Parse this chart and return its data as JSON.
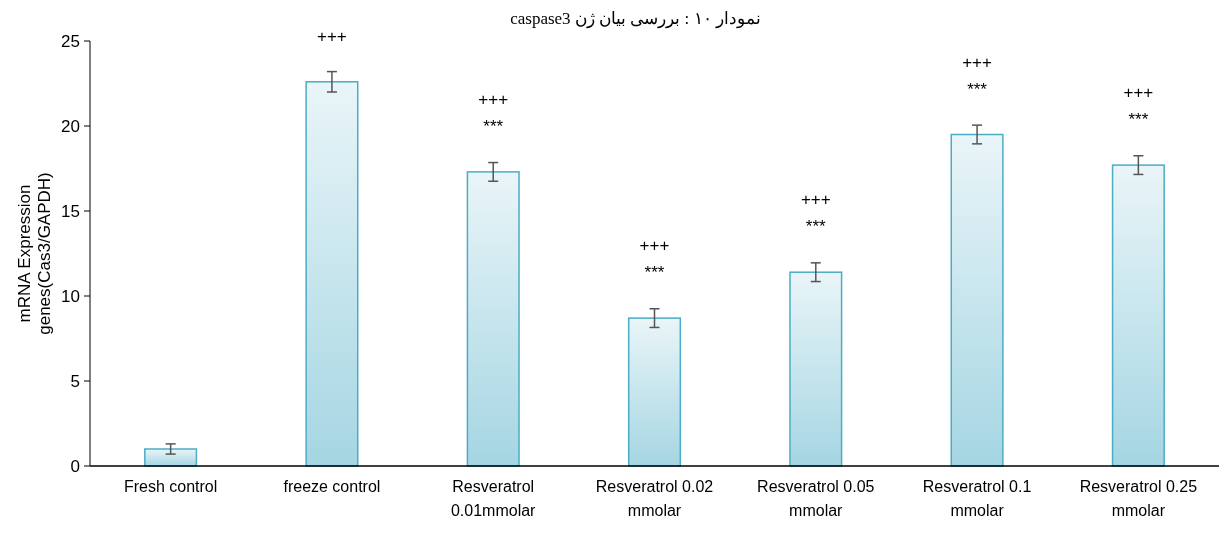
{
  "chart_data": {
    "type": "bar",
    "title": "نمودار ۱۰ : بررسی بیان ژن caspase3",
    "ylabel": "mRNA Expression\ngenes(Cas3/GAPDH)",
    "categories": [
      "Fresh control",
      "freeze control",
      "Resveratrol\n0.01mmolar",
      "Resveratrol 0.02\nmmolar",
      "Resveratrol 0.05\nmmolar",
      "Resveratrol 0.1\nmmolar",
      "Resveratrol 0.25\nmmolar"
    ],
    "values": [
      1.0,
      22.6,
      17.3,
      8.7,
      11.4,
      19.5,
      17.7
    ],
    "errors": [
      0.3,
      0.6,
      0.55,
      0.55,
      0.55,
      0.55,
      0.55
    ],
    "color": "#4bacc6",
    "ylim": [
      0,
      25
    ],
    "yticks": [
      0,
      5,
      10,
      15,
      20,
      25
    ],
    "grid": false,
    "annotations": [
      {
        "text": "+++",
        "x": "freeze control",
        "y": 22.6
      },
      {
        "text": "+++\n***",
        "x": "Resveratrol\n0.01mmolar",
        "y": 17.3
      },
      {
        "text": "+++\n***",
        "x": "Resveratrol 0.02\nmmolar",
        "y": 8.7
      },
      {
        "text": "+++\n***",
        "x": "Resveratrol 0.05\nmmolar",
        "y": 11.4
      },
      {
        "text": "+++\n***",
        "x": "Resveratrol 0.1\nmmolar",
        "y": 19.5
      },
      {
        "text": "+++\n***",
        "x": "Resveratrol 0.25\nmmolar",
        "y": 17.7
      }
    ]
  }
}
